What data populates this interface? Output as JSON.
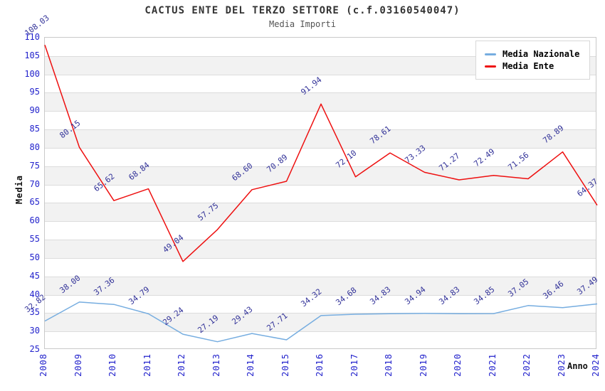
{
  "title": "CACTUS ENTE DEL TERZO SETTORE (c.f.03160540047)",
  "subtitle": "Media Importi",
  "chart_data": {
    "type": "line",
    "x": [
      2008,
      2009,
      2010,
      2011,
      2012,
      2013,
      2014,
      2015,
      2016,
      2017,
      2018,
      2019,
      2020,
      2021,
      2022,
      2023,
      2024
    ],
    "series": [
      {
        "name": "Media Nazionale",
        "color": "#76ade0",
        "values": [
          32.82,
          38.0,
          37.36,
          34.79,
          29.24,
          27.19,
          29.43,
          27.71,
          34.32,
          34.68,
          34.83,
          34.94,
          34.83,
          34.85,
          37.05,
          36.46,
          37.49
        ]
      },
      {
        "name": "Media Ente",
        "color": "#ee1010",
        "values": [
          108.03,
          80.15,
          65.62,
          68.84,
          49.04,
          57.75,
          68.6,
          70.89,
          91.94,
          72.1,
          78.61,
          73.33,
          71.27,
          72.49,
          71.56,
          78.89,
          64.37
        ]
      }
    ],
    "xlabel": "Anno",
    "ylabel": "Media",
    "ylim": [
      25,
      110
    ],
    "ytick_step": 5,
    "grid": true,
    "band_fill": "#f2f2f2",
    "legend_position": "top-right",
    "tick_color": "#2222cc",
    "data_label_color": "#333399"
  }
}
